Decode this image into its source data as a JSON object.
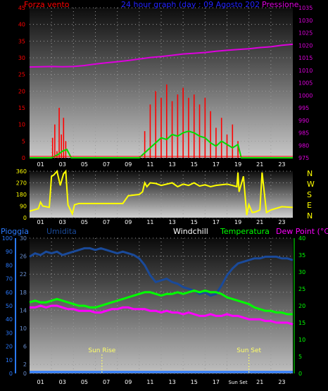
{
  "header": {
    "left": "Forza vento",
    "center": "24 hour graph (day : 09 Agosto 202",
    "right": "Pressione"
  },
  "colors": {
    "bg": "#000000",
    "wind": "#ff0000",
    "gust": "#00dd00",
    "pressure": "#dd00dd",
    "direction": "#ffff00",
    "humidity": "#1a4a9a",
    "temperature": "#00ff00",
    "dewpoint": "#ff00ff",
    "rain": "#2a7aff",
    "windchill": "#ffffff",
    "sun": "#ffff66",
    "axis": "#ffffff"
  },
  "hour_labels": [
    "01",
    "03",
    "05",
    "07",
    "09",
    "11",
    "13",
    "15",
    "17",
    "19",
    "21",
    "23"
  ],
  "hour_labels_bottom": [
    "01",
    "03",
    "05",
    "07",
    "09",
    "11",
    "13",
    "15",
    "17",
    "Sun Set",
    "21",
    "23"
  ],
  "direction_letters": [
    "N",
    "W",
    "S",
    "E",
    "N"
  ],
  "sun": {
    "rise_label": "Sun Rise",
    "set_label": "Sun Set",
    "rise_hour": 6.6,
    "set_hour": 20.0
  },
  "labels3": {
    "rain": "Pioggia",
    "humidity": "Umidita",
    "windchill": "Windchill",
    "temperature": "Temperatura",
    "dewpoint": "Dew Point (°C)"
  },
  "chart_data": [
    {
      "type": "line",
      "title": "24 hour graph (day : 09 Agosto 202",
      "ylabel": "Forza vento",
      "y2label": "Pressione",
      "x_range": [
        0,
        24
      ],
      "ylim": [
        0,
        45
      ],
      "y_ticks": [
        0,
        5,
        10,
        15,
        20,
        25,
        30,
        35,
        40,
        45
      ],
      "y2lim": [
        975,
        1035
      ],
      "y2_ticks": [
        975,
        980,
        985,
        990,
        995,
        1000,
        1005,
        1010,
        1015,
        1020,
        1025,
        1030,
        1035
      ],
      "series": [
        {
          "name": "Pressione",
          "x": [
            0,
            1,
            2,
            3,
            4,
            5,
            6,
            7,
            8,
            9,
            10,
            11,
            12,
            13,
            14,
            15,
            16,
            17,
            18,
            19,
            20,
            21,
            22,
            23,
            24
          ],
          "values": [
            1011.3,
            1011.4,
            1011.5,
            1011.4,
            1011.5,
            1011.9,
            1012.5,
            1013.0,
            1013.4,
            1013.9,
            1014.5,
            1015.1,
            1015.5,
            1016.0,
            1016.5,
            1016.8,
            1017.1,
            1017.6,
            1018.0,
            1018.3,
            1018.6,
            1019.1,
            1019.4,
            1020.0,
            1020.4
          ]
        },
        {
          "name": "wind",
          "x": [
            2.1,
            2.3,
            2.5,
            2.7,
            2.9,
            3.1,
            3.3,
            3.5,
            10.5,
            11.0,
            11.5,
            12.0,
            12.5,
            13.0,
            13.5,
            14.0,
            14.5,
            15.0,
            15.5,
            16.0,
            16.5,
            17.0,
            17.5,
            18.0,
            18.5,
            19.0,
            19.2
          ],
          "values": [
            6,
            10,
            2,
            15,
            7,
            12,
            5,
            0,
            8,
            16,
            20,
            18,
            22,
            17,
            19,
            21,
            18,
            19,
            16,
            18,
            14,
            9,
            12,
            7,
            10,
            5,
            0
          ]
        },
        {
          "name": "gust",
          "x": [
            0,
            2,
            2.6,
            3.0,
            3.4,
            3.8,
            4,
            10,
            10.5,
            11,
            11.5,
            12,
            12.5,
            13,
            13.5,
            14,
            14.5,
            15,
            15.5,
            16,
            16.5,
            17,
            17.5,
            18,
            18.5,
            19,
            19.3,
            20,
            24
          ],
          "values": [
            0,
            0,
            1,
            2,
            2.5,
            0,
            0,
            0,
            1.5,
            3,
            4.5,
            6,
            5.5,
            7,
            6.5,
            7.5,
            8,
            7.5,
            6.5,
            6,
            4.5,
            3.5,
            5,
            4,
            3,
            4,
            0,
            0,
            0
          ]
        }
      ]
    },
    {
      "type": "line",
      "title": "",
      "x_range": [
        0,
        24
      ],
      "ylim": [
        0,
        360
      ],
      "y_ticks": [
        0,
        90,
        180,
        270,
        360
      ],
      "series": [
        {
          "name": "direction",
          "x": [
            0,
            0.8,
            1.0,
            1.2,
            1.8,
            2.0,
            2.2,
            2.5,
            2.8,
            3.1,
            3.3,
            3.5,
            3.9,
            4.1,
            4.5,
            5.5,
            6.5,
            7.5,
            8.5,
            9.0,
            9.5,
            10.0,
            10.3,
            10.5,
            10.7,
            11.0,
            11.5,
            12.0,
            13.0,
            13.5,
            14.0,
            14.5,
            15.0,
            15.5,
            16.0,
            16.5,
            17.0,
            17.5,
            18.0,
            18.5,
            18.9,
            19.0,
            19.1,
            19.5,
            19.8,
            20.0,
            20.3,
            20.6,
            21.0,
            21.2,
            21.6,
            22.0,
            23.0,
            24.0
          ],
          "values": [
            50,
            70,
            120,
            90,
            80,
            320,
            330,
            360,
            250,
            340,
            360,
            100,
            30,
            100,
            110,
            110,
            110,
            110,
            110,
            170,
            175,
            180,
            200,
            270,
            240,
            270,
            265,
            250,
            270,
            240,
            260,
            250,
            270,
            245,
            255,
            240,
            250,
            255,
            260,
            250,
            240,
            350,
            200,
            320,
            20,
            100,
            40,
            45,
            60,
            350,
            40,
            60,
            85,
            80
          ]
        }
      ]
    },
    {
      "type": "line",
      "title": "",
      "x_range": [
        0,
        24
      ],
      "ylim": [
        0,
        40
      ],
      "y_ticks": [
        0,
        5,
        10,
        15,
        20,
        25,
        30,
        35,
        40
      ],
      "y_left_rain_ticks": [
        0,
        10,
        20,
        30,
        40,
        50,
        60,
        70,
        80,
        90,
        100
      ],
      "y_left_hum_ticks": [
        0,
        2,
        6,
        10,
        14,
        18,
        22,
        26,
        30
      ],
      "series": [
        {
          "name": "Umidita",
          "x": [
            0,
            0.5,
            1,
            1.5,
            2,
            2.5,
            3,
            3.5,
            4,
            4.5,
            5,
            5.5,
            6,
            6.5,
            7,
            7.5,
            8,
            8.5,
            9,
            9.5,
            10,
            10.5,
            11,
            11.5,
            12,
            12.5,
            13,
            13.5,
            14,
            14.5,
            15,
            15.5,
            16,
            16.5,
            17,
            17.5,
            18,
            18.5,
            19,
            19.5,
            20,
            20.5,
            21,
            21.5,
            22,
            22.5,
            23,
            23.5,
            24
          ],
          "values": [
            34.5,
            35.5,
            35.0,
            36.0,
            35.5,
            36.0,
            35.0,
            35.5,
            36.0,
            36.5,
            37.0,
            37.0,
            36.5,
            37.0,
            36.5,
            36.0,
            35.5,
            36.0,
            35.5,
            35.0,
            34.0,
            32.0,
            29.0,
            27.0,
            27.5,
            28.0,
            27.0,
            26.5,
            25.5,
            25.0,
            24.5,
            23.5,
            24.0,
            23.0,
            23.5,
            26.0,
            29.0,
            31.0,
            32.5,
            33.0,
            33.5,
            34.0,
            34.0,
            34.5,
            34.5,
            34.5,
            34.0,
            34.0,
            33.5
          ]
        },
        {
          "name": "Temperatura",
          "x": [
            0,
            0.5,
            1,
            1.5,
            2,
            2.5,
            3,
            3.5,
            4,
            4.5,
            5,
            5.5,
            6,
            6.5,
            7,
            7.5,
            8,
            8.5,
            9,
            9.5,
            10,
            10.5,
            11,
            11.5,
            12,
            12.5,
            13,
            13.5,
            14,
            14.5,
            15,
            15.5,
            16,
            16.5,
            17,
            17.5,
            18,
            18.5,
            19,
            19.5,
            20,
            20.5,
            21,
            21.5,
            22,
            22.5,
            23,
            23.5,
            24
          ],
          "values": [
            21.0,
            21.5,
            21.0,
            21.0,
            21.5,
            22.0,
            21.5,
            21.0,
            20.5,
            20.0,
            20.0,
            19.5,
            19.5,
            20.0,
            20.5,
            21.0,
            21.5,
            22.0,
            22.5,
            23.0,
            23.5,
            24.0,
            24.0,
            23.5,
            23.0,
            23.5,
            23.5,
            24.0,
            23.5,
            24.0,
            24.5,
            24.0,
            24.5,
            24.0,
            24.0,
            23.5,
            22.5,
            22.0,
            21.5,
            21.0,
            20.5,
            19.5,
            19.0,
            18.5,
            18.5,
            18.0,
            18.0,
            17.5,
            17.5
          ]
        },
        {
          "name": "Dew Point (°C)",
          "x": [
            0,
            0.5,
            1,
            1.5,
            2,
            2.5,
            3,
            3.5,
            4,
            4.5,
            5,
            5.5,
            6,
            6.5,
            7,
            7.5,
            8,
            8.5,
            9,
            9.5,
            10,
            10.5,
            11,
            11.5,
            12,
            12.5,
            13,
            13.5,
            14,
            14.5,
            15,
            15.5,
            16,
            16.5,
            17,
            17.5,
            18,
            18.5,
            19,
            19.5,
            20,
            20.5,
            21,
            21.5,
            22,
            22.5,
            23,
            23.5,
            24
          ],
          "values": [
            19.5,
            19.5,
            20.0,
            19.5,
            20.0,
            20.0,
            19.5,
            19.0,
            19.0,
            18.5,
            18.5,
            18.5,
            18.0,
            18.0,
            18.5,
            19.0,
            19.0,
            19.5,
            19.5,
            19.0,
            19.0,
            19.0,
            18.5,
            18.5,
            18.0,
            18.5,
            18.0,
            18.0,
            17.5,
            18.0,
            17.5,
            17.0,
            17.0,
            17.5,
            17.0,
            17.0,
            17.5,
            17.0,
            17.0,
            16.5,
            16.0,
            16.0,
            16.0,
            15.5,
            15.5,
            15.0,
            15.0,
            15.0,
            14.5
          ]
        },
        {
          "name": "Pioggia",
          "x": [
            0,
            24
          ],
          "values": [
            0,
            0
          ]
        }
      ]
    }
  ]
}
